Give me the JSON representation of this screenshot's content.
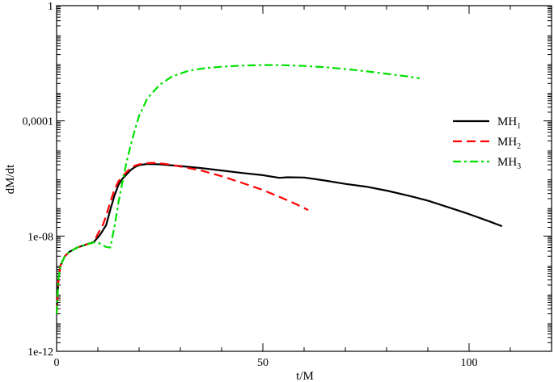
{
  "chart_data": {
    "type": "line",
    "title": "",
    "xlabel": "t/M",
    "ylabel": "dM/dt",
    "xlim": [
      0,
      120
    ],
    "ylim": [
      1e-12,
      1
    ],
    "y_scale": "log",
    "grid": false,
    "legend_position": "right",
    "x_ticks": [
      {
        "value": 0,
        "label": "0"
      },
      {
        "value": 50,
        "label": "50"
      },
      {
        "value": 100,
        "label": "100"
      }
    ],
    "y_ticks": [
      {
        "value": 1e-12,
        "label": "1e-12"
      },
      {
        "value": 1e-08,
        "label": "1e-08"
      },
      {
        "value": 0.0001,
        "label": "0,0001"
      },
      {
        "value": 1,
        "label": "1"
      }
    ],
    "series": [
      {
        "name": "MH",
        "subscript": "1",
        "color": "#000000",
        "dash": "solid",
        "x": [
          0,
          0.5,
          1,
          2,
          3,
          5,
          7,
          9,
          10,
          10.5,
          11,
          12,
          13,
          14,
          15,
          16,
          17,
          18,
          19,
          20,
          22,
          25,
          30,
          35,
          40,
          45,
          50,
          54,
          56,
          60,
          65,
          70,
          75,
          80,
          85,
          90,
          95,
          100,
          105,
          108
        ],
        "y": [
          2e-11,
          4e-10,
          1e-09,
          2e-09,
          2.8e-09,
          4e-09,
          5e-09,
          6.2e-09,
          9e-09,
          1.1e-08,
          1.4e-08,
          2.4e-08,
          8e-08,
          2.5e-07,
          6e-07,
          1e-06,
          1.4e-06,
          2e-06,
          2.5e-06,
          2.9e-06,
          3.2e-06,
          3.1e-06,
          2.7e-06,
          2.3e-06,
          1.9e-06,
          1.55e-06,
          1.3e-06,
          1.05e-06,
          1.1e-06,
          1.08e-06,
          8.5e-07,
          6.5e-07,
          5.2e-07,
          3.8e-07,
          2.6e-07,
          1.7e-07,
          1e-07,
          5.8e-08,
          3.2e-08,
          2.2e-08
        ]
      },
      {
        "name": "MH",
        "subscript": "2",
        "color": "#ff0000",
        "dash": "dashed",
        "x": [
          0,
          0.5,
          1,
          2,
          3,
          5,
          7,
          9,
          10,
          10.5,
          11,
          12,
          13,
          14,
          15,
          16,
          17,
          18,
          19,
          20,
          22,
          24,
          27,
          30,
          35,
          40,
          45,
          50,
          55,
          58,
          61
        ],
        "y": [
          2e-11,
          4e-10,
          1e-09,
          2e-09,
          2.8e-09,
          4e-09,
          5e-09,
          6e-09,
          1.2e-08,
          1.6e-08,
          2e-08,
          5e-08,
          1.5e-07,
          4e-07,
          8e-07,
          1.2e-06,
          1.7e-06,
          2.3e-06,
          2.8e-06,
          3.1e-06,
          3.4e-06,
          3.5e-06,
          3.1e-06,
          2.6e-06,
          1.9e-06,
          1.2e-06,
          7e-07,
          4e-07,
          2e-07,
          1.3e-07,
          8e-08
        ]
      },
      {
        "name": "MH",
        "subscript": "3",
        "color": "#00e000",
        "dash": "dashdot",
        "x": [
          0,
          0.5,
          1,
          2,
          3,
          5,
          7,
          9,
          10,
          11,
          12,
          13,
          14,
          15,
          16,
          17,
          18,
          19,
          20,
          22,
          25,
          28,
          32,
          36,
          40,
          45,
          50,
          55,
          60,
          65,
          70,
          75,
          80,
          85,
          88
        ],
        "y": [
          2e-11,
          4e-10,
          1e-09,
          2e-09,
          2.8e-09,
          4e-09,
          5e-09,
          6e-09,
          6e-09,
          5e-09,
          4.2e-09,
          4e-09,
          2e-08,
          1.5e-07,
          8e-07,
          4e-06,
          1.5e-05,
          5e-05,
          0.00015,
          0.0006,
          0.0018,
          0.0035,
          0.0055,
          0.0068,
          0.0076,
          0.0083,
          0.0087,
          0.0086,
          0.0081,
          0.0073,
          0.0063,
          0.0053,
          0.0043,
          0.0035,
          0.003
        ]
      }
    ]
  }
}
